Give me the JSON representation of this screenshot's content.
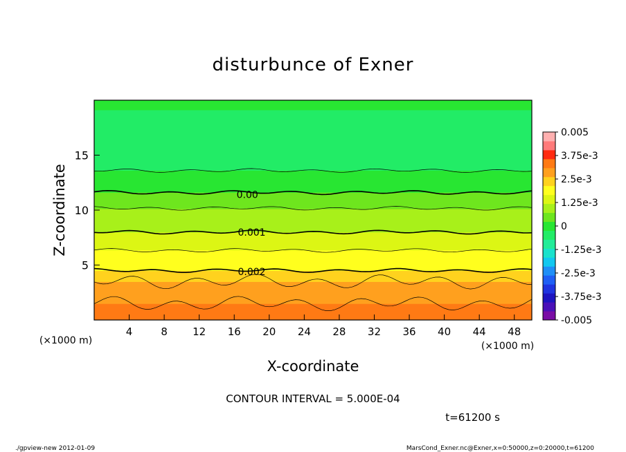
{
  "chart_data": {
    "type": "heatmap",
    "title": "disturbunce of Exner",
    "xlabel": "X-coordinate",
    "ylabel": "Z-coordinate",
    "x_unit": "(×1000 m)",
    "xlim": [
      0,
      50
    ],
    "ylim": [
      0,
      20
    ],
    "x_ticks": [
      4,
      8,
      12,
      16,
      20,
      24,
      28,
      32,
      36,
      40,
      44,
      48
    ],
    "y_ticks": [
      5,
      10,
      15
    ],
    "colorbar": {
      "labels": [
        "0.005",
        "3.75e-3",
        "2.5e-3",
        "1.25e-3",
        "0",
        "-1.25e-3",
        "-2.5e-3",
        "-3.75e-3",
        "-0.005"
      ],
      "levels": [
        -0.005,
        -0.0045,
        -0.004,
        -0.0035,
        -0.003,
        -0.0025,
        -0.002,
        -0.0015,
        -0.001,
        -0.0005,
        0,
        0.0005,
        0.001,
        0.0015,
        0.002,
        0.0025,
        0.003,
        0.0035,
        0.004,
        0.0045,
        0.005
      ],
      "colors": [
        "#7a0da5",
        "#4a10b8",
        "#1d14c0",
        "#1f34e0",
        "#1f5ff5",
        "#1f8ff7",
        "#12c8f0",
        "#1ae2cc",
        "#22ec99",
        "#22ec66",
        "#28e632",
        "#6ee61e",
        "#a8f01a",
        "#dcf614",
        "#ffff1e",
        "#ffd21e",
        "#ffa01e",
        "#ff7a14",
        "#ff2a10",
        "#ff7a7a",
        "#ffb0b0"
      ]
    },
    "vertical_profile": {
      "z": [
        0,
        1,
        2,
        3,
        3.5,
        4,
        4.5,
        5,
        6,
        7,
        8,
        9,
        10,
        11,
        11.6,
        12,
        13,
        14,
        16,
        18,
        20
      ],
      "value": [
        0.0034,
        0.0031,
        0.0029,
        0.00265,
        0.0025,
        0.0023,
        0.002,
        0.00185,
        0.0016,
        0.0013,
        0.001,
        0.0008,
        0.00055,
        0.00025,
        0.0,
        -0.0001,
        -0.00035,
        -0.0006,
        -0.0008,
        -0.00062,
        -0.0004
      ]
    },
    "contour_labels": [
      {
        "text": "0.00",
        "x": 17.5,
        "z": 11.4
      },
      {
        "text": "0.001",
        "x": 18.0,
        "z": 8.0
      },
      {
        "text": "0.002",
        "x": 18.0,
        "z": 4.4
      }
    ],
    "contour_interval_text": "CONTOUR INTERVAL = 5.000E-04",
    "time_text": "t=61200 s"
  },
  "footer": {
    "left": "./gpview-new   2012-01-09",
    "right": "MarsCond_Exner.nc@Exner,x=0:50000,z=0:20000,t=61200"
  }
}
